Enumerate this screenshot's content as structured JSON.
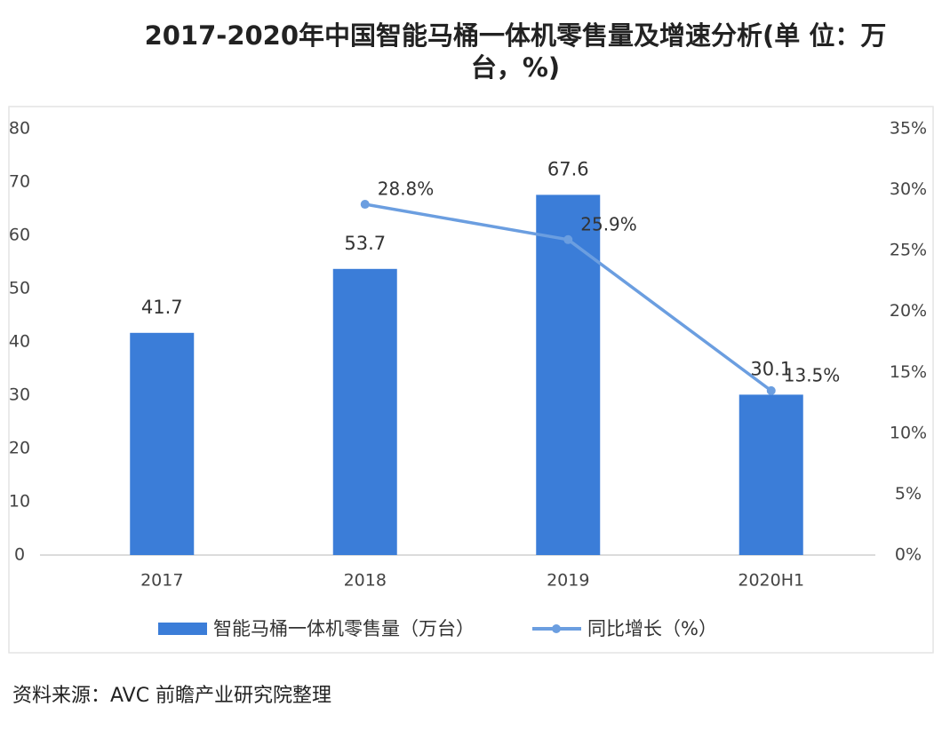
{
  "chart_data": {
    "type": "bar-line",
    "title": "2017-2020年中国智能马桶一体机零售量及增速分析(单 位：万台，%)",
    "source": "资料来源：AVC 前瞻产业研究院整理",
    "categories": [
      "2017",
      "2018",
      "2019",
      "2020H1"
    ],
    "series": [
      {
        "name": "智能马桶一体机零售量（万台）",
        "type": "bar",
        "color": "#3b7dd8",
        "values": [
          41.7,
          53.7,
          67.6,
          30.1
        ]
      },
      {
        "name": "同比增长（%）",
        "type": "line",
        "axis": "y2",
        "color": "#6b9ee0",
        "values": [
          null,
          28.8,
          25.9,
          13.5
        ],
        "value_labels": [
          null,
          "28.8%",
          "25.9%",
          "13.5%"
        ]
      }
    ],
    "ylim": [
      0,
      80
    ],
    "yticks": [
      0,
      10,
      20,
      30,
      40,
      50,
      60,
      70,
      80
    ],
    "y2lim": [
      0,
      35
    ],
    "y2ticks": [
      {
        "value": 0,
        "label": "0%"
      },
      {
        "value": 5,
        "label": "5%"
      },
      {
        "value": 10,
        "label": "10%"
      },
      {
        "value": 15,
        "label": "15%"
      },
      {
        "value": 20,
        "label": "20%"
      },
      {
        "value": 25,
        "label": "25%"
      },
      {
        "value": 30,
        "label": "30%"
      },
      {
        "value": 35,
        "label": "35%"
      }
    ],
    "legend": "bottom"
  }
}
